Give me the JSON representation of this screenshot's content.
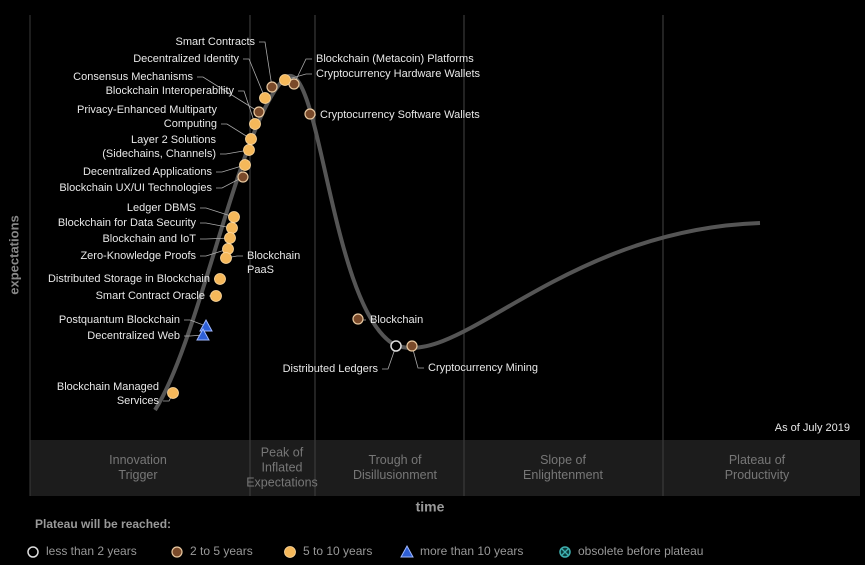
{
  "diagram": {
    "y_axis_label": "expectations",
    "x_axis_label": "time",
    "as_of": "As of July 2019",
    "phases": [
      [
        "Innovation",
        "Trigger"
      ],
      [
        "Peak of",
        "Inflated",
        "Expectations"
      ],
      [
        "Trough of",
        "Disillusionment"
      ],
      [
        "Slope of",
        "Enlightenment"
      ],
      [
        "Plateau of",
        "Productivity"
      ]
    ],
    "legend": {
      "title": "Plateau will be reached:",
      "entries": [
        {
          "label": "less than 2 years",
          "items": [
            {
              "label": [
                "Distributed Ledgers"
              ]
            }
          ]
        },
        {
          "label": "2 to 5 years",
          "items": [
            {
              "label": [
                "Smart Contracts"
              ]
            },
            {
              "label": [
                "Consensus Mechanisms"
              ]
            },
            {
              "label": [
                "Blockchain UX/UI Technologies"
              ]
            },
            {
              "label": [
                "Blockchain (Metacoin) Platforms"
              ]
            },
            {
              "label": [
                "Cryptocurrency Software Wallets"
              ]
            },
            {
              "label": [
                "Blockchain"
              ]
            },
            {
              "label": [
                "Cryptocurrency Mining"
              ]
            }
          ]
        },
        {
          "label": "5 to 10 years",
          "items": [
            {
              "label": [
                "Decentralized Identity"
              ]
            },
            {
              "label": [
                "Cryptocurrency Hardware Wallets"
              ]
            },
            {
              "label": [
                "Blockchain Interoperability"
              ]
            },
            {
              "label": [
                "Privacy-Enhanced Multiparty",
                "Computing"
              ]
            },
            {
              "label": [
                "Layer 2 Solutions",
                "(Sidechains, Channels)"
              ]
            },
            {
              "label": [
                "Decentralized Applications"
              ]
            },
            {
              "label": [
                "Ledger DBMS"
              ]
            },
            {
              "label": [
                "Blockchain for Data Security"
              ]
            },
            {
              "label": [
                "Blockchain and IoT"
              ]
            },
            {
              "label": [
                "Zero-Knowledge Proofs"
              ]
            },
            {
              "label": [
                "Blockchain",
                "PaaS"
              ]
            },
            {
              "label": [
                "Distributed Storage in Blockchain"
              ]
            },
            {
              "label": [
                "Smart Contract Oracle"
              ]
            },
            {
              "label": [
                "Blockchain Managed",
                "Services"
              ]
            }
          ]
        },
        {
          "label": "more than 10 years",
          "items": [
            {
              "label": [
                "Postquantum Blockchain"
              ]
            },
            {
              "label": [
                "Decentralized Web"
              ]
            }
          ]
        },
        {
          "label": "obsolete before plateau"
        }
      ]
    }
  }
}
